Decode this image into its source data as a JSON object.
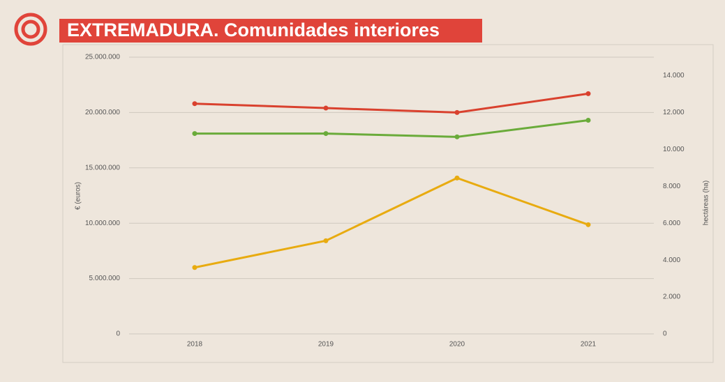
{
  "chart_data": {
    "type": "line",
    "title": "EXTREMADURA. Comunidades interiores",
    "ylabel": "€ (euros)",
    "y2label": "hectáreas (ha)",
    "categories": [
      "2018",
      "2019",
      "2020",
      "2021"
    ],
    "series": [
      {
        "color": "#d9412e",
        "values": [
          20800000,
          20400000,
          20000000,
          21700000
        ]
      },
      {
        "color": "#6aab3a",
        "values": [
          18100000,
          18100000,
          17800000,
          19300000
        ]
      },
      {
        "color": "#e8ab10",
        "axis": "y2",
        "values": [
          3600,
          5050,
          8450,
          5920
        ]
      }
    ],
    "ylim": [
      0,
      25000000
    ],
    "yticks": [
      0,
      {
        "value": 5000000,
        "label": "5.000.000"
      },
      {
        "value": 10000000,
        "label": "10.000.000"
      },
      {
        "value": 15000000,
        "label": "15.000.000"
      },
      {
        "value": 20000000,
        "label": "20.000.000"
      },
      {
        "value": 25000000,
        "label": "25.000.000"
      }
    ],
    "y2lim": [
      0,
      15000
    ],
    "y2ticks": [
      0,
      {
        "value": 2000,
        "label": "2.000"
      },
      {
        "value": 4000,
        "label": "4.000"
      },
      {
        "value": 6000,
        "label": "6.000"
      },
      {
        "value": 8000,
        "label": "8.000"
      },
      {
        "value": 10000,
        "label": "10.000"
      },
      {
        "value": 12000,
        "label": "12.000"
      },
      {
        "value": 14000,
        "label": "14.000"
      }
    ],
    "grid": true
  }
}
